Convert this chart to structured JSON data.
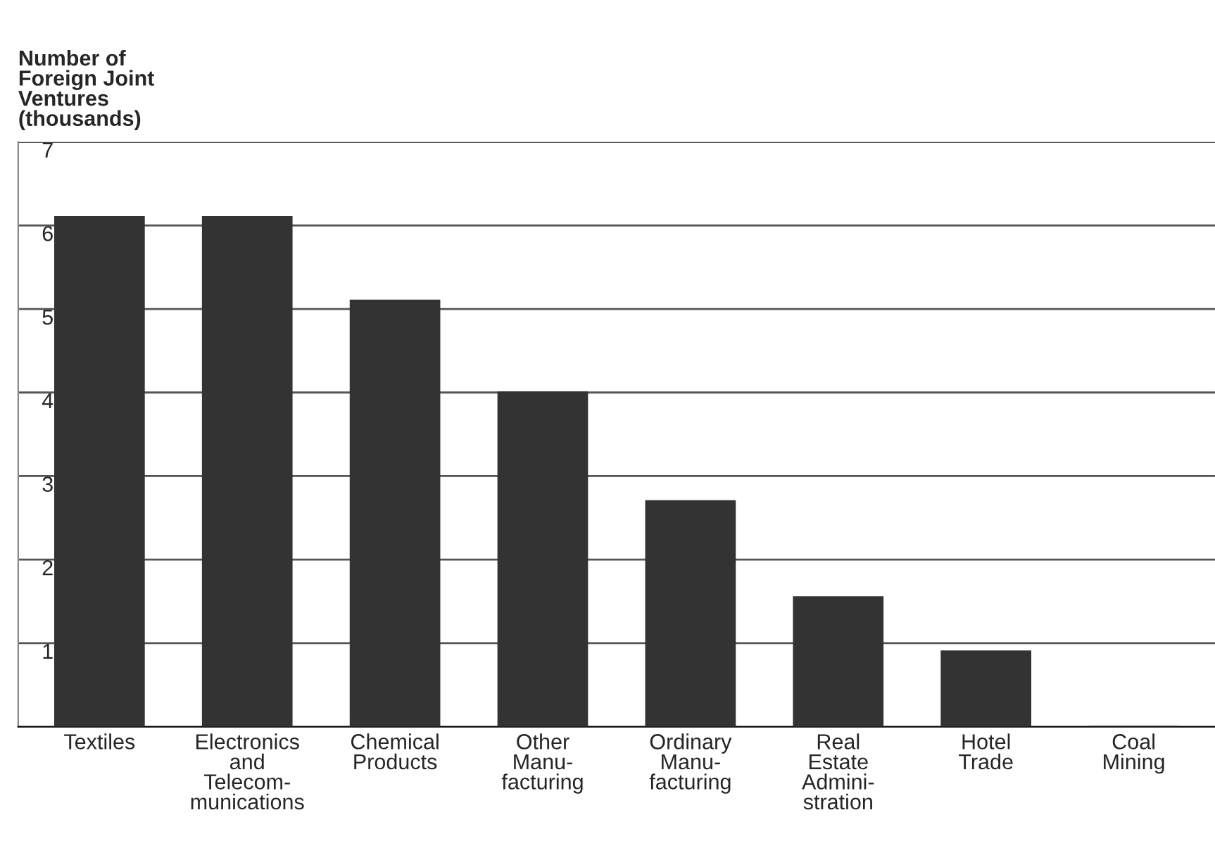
{
  "chart_data": {
    "type": "bar",
    "ylabel": "Number of\nForeign Joint\nVentures\n(thousands)",
    "categories": [
      "Textiles",
      "Electronics\nand\nTelecom-\nmunications",
      "Chemical\nProducts",
      "Other\nManu-\nfacturing",
      "Ordinary\nManu-\nfacturing",
      "Real\nEstate\nAdmini-\nstration",
      "Hotel\nTrade",
      "Coal\nMining"
    ],
    "values": [
      6.1,
      6.1,
      5.1,
      4.0,
      2.7,
      1.55,
      0.9,
      0
    ],
    "color": "#333333",
    "ylim": [
      0,
      7
    ],
    "yticks": [
      1,
      2,
      3,
      4,
      5,
      6,
      7
    ],
    "grid": "y"
  }
}
